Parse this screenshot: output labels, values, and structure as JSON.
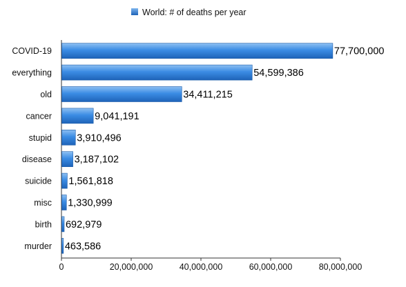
{
  "chart_data": {
    "type": "bar",
    "orientation": "horizontal",
    "title": "",
    "xlabel": "",
    "ylabel": "",
    "categories": [
      "COVID-19",
      "everything",
      "old",
      "cancer",
      "stupid",
      "disease",
      "suicide",
      "misc",
      "birth",
      "murder"
    ],
    "series": [
      {
        "name": "World: # of deaths per year",
        "values": [
          77700000,
          54599386,
          34411215,
          9041191,
          3910496,
          3187102,
          1561818,
          1330999,
          692979,
          463586
        ],
        "value_labels": [
          "77,700,000",
          "54,599,386",
          "34,411,215",
          "9,041,191",
          "3,910,496",
          "3,187,102",
          "1,561,818",
          "1,330,999",
          "692,979",
          "463,586"
        ],
        "color": "#2f7fdc"
      }
    ],
    "xlim": [
      0,
      80000000
    ],
    "x_ticks": [
      0,
      20000000,
      40000000,
      60000000,
      80000000
    ],
    "x_tick_labels": [
      "0",
      "20,000,000",
      "40,000,000",
      "60,000,000",
      "80,000,000"
    ],
    "grid": false,
    "legend_position": "top-center"
  }
}
